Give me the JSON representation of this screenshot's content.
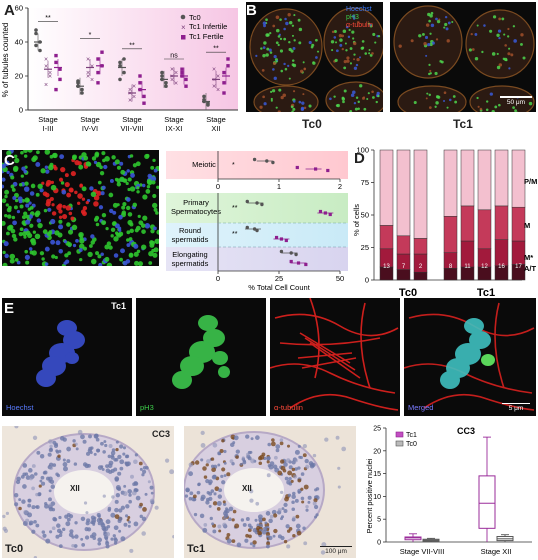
{
  "panels": {
    "A": {
      "label": "A",
      "ylabel": "% of tubules counted",
      "yticks": [
        "0",
        "20",
        "40",
        "60"
      ],
      "legend": [
        "Tc0",
        "Tc1 Infertile",
        "Tc1 Fertile"
      ],
      "stages": [
        "Stage\nI-III",
        "Stage\nIV-VI",
        "Stage\nVII-VIII",
        "Stage\nIX-XI",
        "Stage\nXII"
      ],
      "stage_line1": [
        "Stage",
        "Stage",
        "Stage",
        "Stage",
        "Stage"
      ],
      "stage_line2": [
        "I-III",
        "IV-VI",
        "VII-VIII",
        "IX-XI",
        "XII"
      ],
      "significance": [
        "**",
        "*",
        "**",
        "ns",
        "**"
      ],
      "colors": {
        "tc0": "#555555",
        "tc1_inf": "#7a3f7a",
        "tc1_fert": "#8e1f8e"
      }
    },
    "B": {
      "label": "B",
      "stain_labels": [
        "Hoechst",
        "pH3",
        "α-tubulin"
      ],
      "left_caption": "Tc0",
      "right_caption": "Tc1",
      "scale": "50 μm"
    },
    "C": {
      "label": "C",
      "categories": [
        "Meiotic",
        "Primary\nSpermatocytes",
        "Round\nspermatids",
        "Elongating\nspermatids"
      ],
      "cat_line1": [
        "Meiotic",
        "Primary",
        "Round",
        "Elongating"
      ],
      "cat_line2": [
        "",
        "Spermatocytes",
        "spermatids",
        "spermatids"
      ],
      "axis1_ticks": [
        "0",
        "1",
        "2"
      ],
      "axis2_ticks": [
        "0",
        "25",
        "50"
      ],
      "xlabel": "% Total Cell Count",
      "sig": [
        "*",
        "**",
        "**"
      ]
    },
    "D": {
      "label": "D",
      "ylabel": "% of cells",
      "yticks": [
        "0",
        "25",
        "50",
        "75",
        "100"
      ],
      "groups": [
        "Tc0",
        "Tc1"
      ],
      "bar_numbers": [
        "13",
        "7",
        "2",
        "8",
        "11",
        "12",
        "16",
        "17"
      ],
      "phase_labels": [
        "P/M",
        "M",
        "M*",
        "A/T"
      ]
    },
    "E": {
      "label": "E",
      "corner": "Tc1",
      "channel_labels": [
        "Hoechst",
        "pH3",
        "α-tubulin",
        "Merged"
      ],
      "scale": "5 μm"
    },
    "F": {
      "label": "F",
      "left_tag": "CC3",
      "stage_tag": "XII",
      "left_caption": "Tc0",
      "right_caption": "Tc1",
      "scale": "100 μm"
    }
  },
  "chart_data": [
    {
      "type": "scatter",
      "title": "",
      "ylabel": "% of tubules counted",
      "ylim": [
        0,
        60
      ],
      "categories": [
        "Stage I-III",
        "Stage IV-VI",
        "Stage VII-VIII",
        "Stage IX-XI",
        "Stage XII"
      ],
      "series": [
        {
          "name": "Tc0",
          "values": [
            [
              38,
              40,
              45,
              35,
              47
            ],
            [
              14,
              10,
              17,
              12,
              16
            ],
            [
              26,
              22,
              28,
              30,
              18
            ],
            [
              18,
              16,
              20,
              14,
              22
            ],
            [
              5,
              3,
              8,
              4,
              6
            ]
          ]
        },
        {
          "name": "Tc1 Infertile",
          "values": [
            [
              26,
              20,
              30,
              22,
              15
            ],
            [
              20,
              26,
              30,
              18,
              22
            ],
            [
              10,
              14,
              6,
              8,
              12
            ],
            [
              20,
              22,
              18,
              16,
              24
            ],
            [
              14,
              20,
              24,
              12,
              18
            ]
          ]
        },
        {
          "name": "Tc1 Fertile",
          "values": [
            [
              28,
              24,
              32,
              18,
              12
            ],
            [
              30,
              34,
              22,
              26,
              16
            ],
            [
              16,
              8,
              12,
              4,
              20
            ],
            [
              22,
              18,
              24,
              14,
              20
            ],
            [
              22,
              30,
              16,
              26,
              10
            ]
          ]
        }
      ],
      "means": {
        "Tc0": [
          40,
          14,
          25,
          18,
          5
        ],
        "Tc1 Infertile": [
          24,
          25,
          10,
          20,
          18
        ],
        "Tc1 Fertile": [
          25,
          26,
          12,
          20,
          20
        ]
      }
    },
    {
      "type": "scatter",
      "title": "",
      "xlabel": "% Total Cell Count",
      "categories": [
        "Meiotic",
        "Primary Spermatocytes",
        "Round spermatids",
        "Elongating spermatids"
      ],
      "series": [
        {
          "name": "Tc0",
          "values": [
            [
              0.6,
              0.8,
              0.9
            ],
            [
              12,
              16,
              18
            ],
            [
              12,
              15,
              16
            ],
            [
              26,
              30,
              32
            ]
          ]
        },
        {
          "name": "Tc1",
          "values": [
            [
              1.3,
              1.6,
              1.8
            ],
            [
              42,
              44,
              46
            ],
            [
              24,
              26,
              28
            ],
            [
              30,
              33,
              36
            ]
          ]
        }
      ]
    },
    {
      "type": "bar",
      "title": "",
      "ylabel": "% of cells",
      "ylim": [
        0,
        100
      ],
      "groups": [
        "Tc0",
        "Tc0",
        "Tc0",
        "Tc1",
        "Tc1",
        "Tc1",
        "Tc1",
        "Tc1"
      ],
      "series": [
        {
          "name": "A/T",
          "values": [
            10,
            8,
            6,
            9,
            10,
            10,
            11,
            12
          ]
        },
        {
          "name": "M*",
          "values": [
            14,
            12,
            14,
            12,
            20,
            14,
            20,
            18
          ]
        },
        {
          "name": "M",
          "values": [
            18,
            14,
            12,
            28,
            27,
            30,
            26,
            26
          ]
        },
        {
          "name": "P/M",
          "values": [
            58,
            66,
            68,
            51,
            43,
            46,
            43,
            44
          ]
        }
      ]
    },
    {
      "type": "bar",
      "title": "CC3",
      "ylabel": "Percent positive nuclei",
      "ylim": [
        0,
        25
      ],
      "yticks": [
        "0",
        "5",
        "10",
        "15",
        "20",
        "25"
      ],
      "categories": [
        "Stage VII-VIII",
        "Stage XII"
      ],
      "series": [
        {
          "name": "Tc1",
          "values": [
            [
              0,
              0.5,
              0.9,
              1.1,
              1.8
            ],
            [
              0,
              3,
              8.5,
              14.5,
              23
            ]
          ]
        },
        {
          "name": "Tc0",
          "values": [
            [
              0,
              0.2,
              0.4,
              0.6,
              0.8
            ],
            [
              0,
              0.3,
              0.7,
              1.2,
              1.6
            ]
          ]
        }
      ]
    }
  ]
}
